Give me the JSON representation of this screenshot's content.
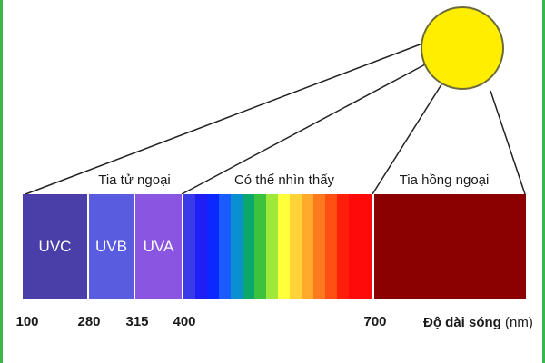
{
  "groups": {
    "uv": "Tia tử ngoại",
    "visible": "Có thể nhìn thấy",
    "infrared": "Tia hồng ngoại"
  },
  "bands": [
    {
      "label": "UVC",
      "color": "#4a3fa8"
    },
    {
      "label": "UVB",
      "color": "#5a5ce0"
    },
    {
      "label": "UVA",
      "color": "#8a55e0"
    }
  ],
  "spectrum_colors": [
    "#3a3ae8",
    "#1e1ef5",
    "#0a28ff",
    "#1a5cff",
    "#0a8fd0",
    "#0aa86a",
    "#3cc23c",
    "#9ee83a",
    "#ffff3a",
    "#ffd23a",
    "#ffaa2a",
    "#ff7a1e",
    "#ff5014",
    "#ff1e0a",
    "#ff0a0a",
    "#ff0a0a"
  ],
  "infrared_color": "#8b0000",
  "sun_color": "#ffee00",
  "ticks": [
    "100",
    "280",
    "315",
    "400",
    "700"
  ],
  "axis": {
    "title": "Độ dài sóng",
    "unit": "(nm)"
  }
}
